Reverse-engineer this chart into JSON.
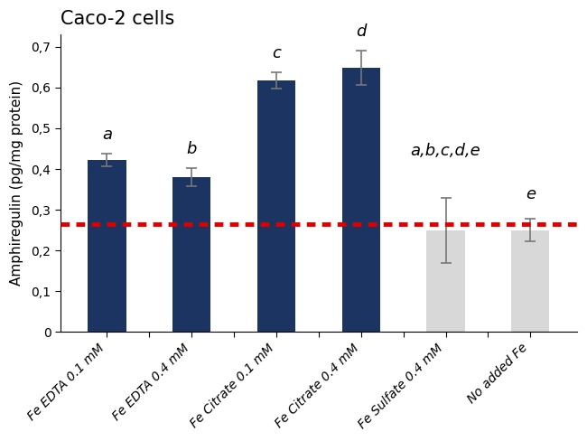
{
  "title": "Caco-2 cells",
  "ylabel": "Amphiregulin (pg/mg protein)",
  "categories": [
    "Fe EDTA 0.1 mM",
    "Fe EDTA 0.4 mM",
    "Fe Citrate 0.1 mM",
    "Fe Citrate 0.4 mM",
    "Fe Sulfate 0.4 mM",
    "No added Fe"
  ],
  "values": [
    0.422,
    0.38,
    0.618,
    0.648,
    0.25,
    0.25
  ],
  "errors": [
    0.015,
    0.022,
    0.02,
    0.042,
    0.08,
    0.028
  ],
  "bar_colors": [
    "#1c3461",
    "#1c3461",
    "#1c3461",
    "#1c3461",
    "#d8d8d8",
    "#d8d8d8"
  ],
  "significance_labels": [
    "a",
    "b",
    "c",
    "d",
    "a,b,c,d,e",
    "e"
  ],
  "sig_label_offsets": [
    0.028,
    0.028,
    0.025,
    0.028,
    0.095,
    0.04
  ],
  "red_line_y": 0.265,
  "ylim": [
    0,
    0.73
  ],
  "yticks": [
    0,
    0.1,
    0.2,
    0.3,
    0.4,
    0.5,
    0.6,
    0.7
  ],
  "ytick_labels": [
    "0",
    "0,1",
    "0,2",
    "0,3",
    "0,4",
    "0,5",
    "0,6",
    "0,7"
  ],
  "title_fontsize": 15,
  "label_fontsize": 11,
  "tick_fontsize": 10,
  "sig_fontsize": 13,
  "error_color": "#777777",
  "red_line_color": "#dd0000",
  "background_color": "#ffffff"
}
